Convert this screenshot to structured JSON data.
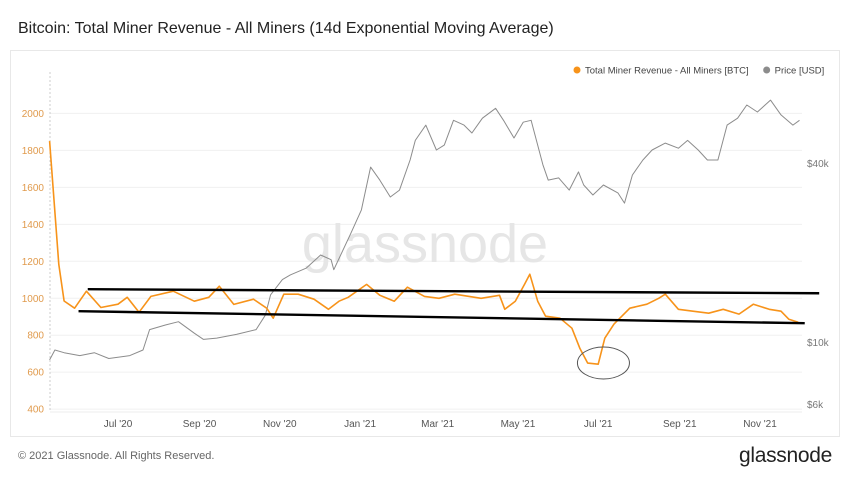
{
  "title": "Bitcoin: Total Miner Revenue - All Miners (14d Exponential Moving Average)",
  "footer": {
    "copyright": "© 2021 Glassnode. All Rights Reserved.",
    "logo": "glassnode"
  },
  "watermark": "glassnode",
  "chart_data": {
    "type": "line",
    "title": "Bitcoin: Total Miner Revenue - All Miners (14d Exponential Moving Average)",
    "legend_placement": "top-right",
    "grid": true,
    "x_ticks": [
      {
        "label": "Jul '20",
        "date": "2020-07-01"
      },
      {
        "label": "Sep '20",
        "date": "2020-09-01"
      },
      {
        "label": "Nov '20",
        "date": "2020-11-01"
      },
      {
        "label": "Jan '21",
        "date": "2021-01-01"
      },
      {
        "label": "Mar '21",
        "date": "2021-03-01"
      },
      {
        "label": "May '21",
        "date": "2021-05-01"
      },
      {
        "label": "Jul '21",
        "date": "2021-07-01"
      },
      {
        "label": "Sep '21",
        "date": "2021-09-01"
      },
      {
        "label": "Nov '21",
        "date": "2021-11-01"
      }
    ],
    "xlim": [
      "2020-05-10",
      "2021-12-01"
    ],
    "y_left": {
      "ticks": [
        400,
        600,
        800,
        1000,
        1200,
        1400,
        1600,
        1800,
        2000
      ],
      "ylim": [
        390,
        2170
      ],
      "color": "#f7931a"
    },
    "y_right": {
      "scale": "log",
      "ticks": [
        {
          "label": "$6k",
          "value": 6000
        },
        {
          "label": "$10k",
          "value": 10000
        },
        {
          "label": "$40k",
          "value": 40000
        }
      ],
      "ylim": [
        5860,
        74800
      ]
    },
    "series": [
      {
        "name": "Total Miner Revenue - All Miners [BTC]",
        "axis": "left",
        "color": "#f7931a",
        "points": [
          [
            "2020-05-10",
            1850
          ],
          [
            "2020-05-17",
            1183
          ],
          [
            "2020-05-21",
            985
          ],
          [
            "2020-05-29",
            946
          ],
          [
            "2020-06-07",
            1038
          ],
          [
            "2020-06-18",
            950
          ],
          [
            "2020-07-01",
            968
          ],
          [
            "2020-07-08",
            1005
          ],
          [
            "2020-07-17",
            924
          ],
          [
            "2020-07-26",
            1010
          ],
          [
            "2020-08-12",
            1038
          ],
          [
            "2020-08-28",
            984
          ],
          [
            "2020-09-08",
            1005
          ],
          [
            "2020-09-16",
            1065
          ],
          [
            "2020-09-27",
            967
          ],
          [
            "2020-10-12",
            995
          ],
          [
            "2020-10-22",
            946
          ],
          [
            "2020-10-27",
            892
          ],
          [
            "2020-11-04",
            1022
          ],
          [
            "2020-11-15",
            1022
          ],
          [
            "2020-11-27",
            995
          ],
          [
            "2020-12-08",
            940
          ],
          [
            "2020-12-16",
            984
          ],
          [
            "2020-12-23",
            1005
          ],
          [
            "2021-01-06",
            1075
          ],
          [
            "2021-01-16",
            1016
          ],
          [
            "2021-01-27",
            984
          ],
          [
            "2021-02-06",
            1060
          ],
          [
            "2021-02-19",
            1010
          ],
          [
            "2021-03-02",
            1000
          ],
          [
            "2021-03-14",
            1022
          ],
          [
            "2021-04-03",
            1000
          ],
          [
            "2021-04-17",
            1016
          ],
          [
            "2021-04-21",
            940
          ],
          [
            "2021-04-29",
            984
          ],
          [
            "2021-05-06",
            1075
          ],
          [
            "2021-05-10",
            1130
          ],
          [
            "2021-05-16",
            984
          ],
          [
            "2021-05-22",
            903
          ],
          [
            "2021-06-02",
            892
          ],
          [
            "2021-06-11",
            838
          ],
          [
            "2021-06-17",
            730
          ],
          [
            "2021-06-23",
            649
          ],
          [
            "2021-07-01",
            643
          ],
          [
            "2021-07-06",
            784
          ],
          [
            "2021-07-13",
            860
          ],
          [
            "2021-07-25",
            946
          ],
          [
            "2021-08-07",
            968
          ],
          [
            "2021-08-16",
            1000
          ],
          [
            "2021-08-21",
            1022
          ],
          [
            "2021-08-31",
            940
          ],
          [
            "2021-09-11",
            930
          ],
          [
            "2021-09-23",
            919
          ],
          [
            "2021-10-04",
            940
          ],
          [
            "2021-10-16",
            914
          ],
          [
            "2021-10-27",
            968
          ],
          [
            "2021-11-08",
            940
          ],
          [
            "2021-11-17",
            930
          ],
          [
            "2021-11-23",
            886
          ],
          [
            "2021-11-30",
            870
          ]
        ]
      },
      {
        "name": "Price [USD]",
        "axis": "right",
        "color": "#8c8c8c",
        "points": [
          [
            "2020-05-10",
            8700
          ],
          [
            "2020-05-14",
            9400
          ],
          [
            "2020-05-21",
            9200
          ],
          [
            "2020-06-02",
            9000
          ],
          [
            "2020-06-13",
            9200
          ],
          [
            "2020-06-24",
            8800
          ],
          [
            "2020-07-10",
            9000
          ],
          [
            "2020-07-20",
            9400
          ],
          [
            "2020-07-25",
            11000
          ],
          [
            "2020-08-06",
            11400
          ],
          [
            "2020-08-16",
            11700
          ],
          [
            "2020-08-28",
            10700
          ],
          [
            "2020-09-04",
            10200
          ],
          [
            "2020-09-14",
            10300
          ],
          [
            "2020-09-29",
            10600
          ],
          [
            "2020-10-14",
            11000
          ],
          [
            "2020-10-21",
            12300
          ],
          [
            "2020-10-25",
            14400
          ],
          [
            "2020-11-03",
            16200
          ],
          [
            "2020-11-09",
            16800
          ],
          [
            "2020-11-21",
            17700
          ],
          [
            "2020-12-02",
            19600
          ],
          [
            "2020-12-10",
            18900
          ],
          [
            "2020-12-12",
            17500
          ],
          [
            "2020-12-25",
            23200
          ],
          [
            "2021-01-02",
            27800
          ],
          [
            "2021-01-09",
            38700
          ],
          [
            "2021-01-16",
            35000
          ],
          [
            "2021-01-24",
            30700
          ],
          [
            "2021-01-31",
            32400
          ],
          [
            "2021-02-08",
            40900
          ],
          [
            "2021-02-12",
            47600
          ],
          [
            "2021-02-20",
            53600
          ],
          [
            "2021-02-28",
            44200
          ],
          [
            "2021-03-06",
            45900
          ],
          [
            "2021-03-13",
            55600
          ],
          [
            "2021-03-21",
            53600
          ],
          [
            "2021-03-27",
            50400
          ],
          [
            "2021-04-04",
            56500
          ],
          [
            "2021-04-14",
            61000
          ],
          [
            "2021-04-20",
            55600
          ],
          [
            "2021-04-28",
            48500
          ],
          [
            "2021-05-05",
            54800
          ],
          [
            "2021-05-11",
            55600
          ],
          [
            "2021-05-20",
            39400
          ],
          [
            "2021-05-24",
            35000
          ],
          [
            "2021-06-01",
            35600
          ],
          [
            "2021-06-09",
            32400
          ],
          [
            "2021-06-16",
            37300
          ],
          [
            "2021-06-20",
            33700
          ],
          [
            "2021-06-27",
            31200
          ],
          [
            "2021-07-05",
            33700
          ],
          [
            "2021-07-16",
            31700
          ],
          [
            "2021-07-21",
            29300
          ],
          [
            "2021-07-27",
            36400
          ],
          [
            "2021-08-04",
            40900
          ],
          [
            "2021-08-11",
            44200
          ],
          [
            "2021-08-21",
            46600
          ],
          [
            "2021-08-31",
            44800
          ],
          [
            "2021-09-07",
            47600
          ],
          [
            "2021-09-15",
            44200
          ],
          [
            "2021-09-22",
            40900
          ],
          [
            "2021-09-30",
            40900
          ],
          [
            "2021-10-07",
            53600
          ],
          [
            "2021-10-15",
            56500
          ],
          [
            "2021-10-22",
            62600
          ],
          [
            "2021-10-30",
            59300
          ],
          [
            "2021-11-09",
            65000
          ],
          [
            "2021-11-17",
            58000
          ],
          [
            "2021-11-26",
            53600
          ],
          [
            "2021-12-01",
            55600
          ]
        ]
      }
    ],
    "annotations": [
      {
        "type": "trendline",
        "color": "#000000",
        "from": [
          "2020-06-08",
          1049
        ],
        "to": [
          "2021-12-16",
          1027
        ]
      },
      {
        "type": "trendline",
        "color": "#000000",
        "from": [
          "2020-06-01",
          930
        ],
        "to": [
          "2021-12-05",
          865
        ]
      },
      {
        "type": "ellipse",
        "color": "#555555",
        "center": [
          "2021-07-05",
          650
        ]
      }
    ]
  }
}
